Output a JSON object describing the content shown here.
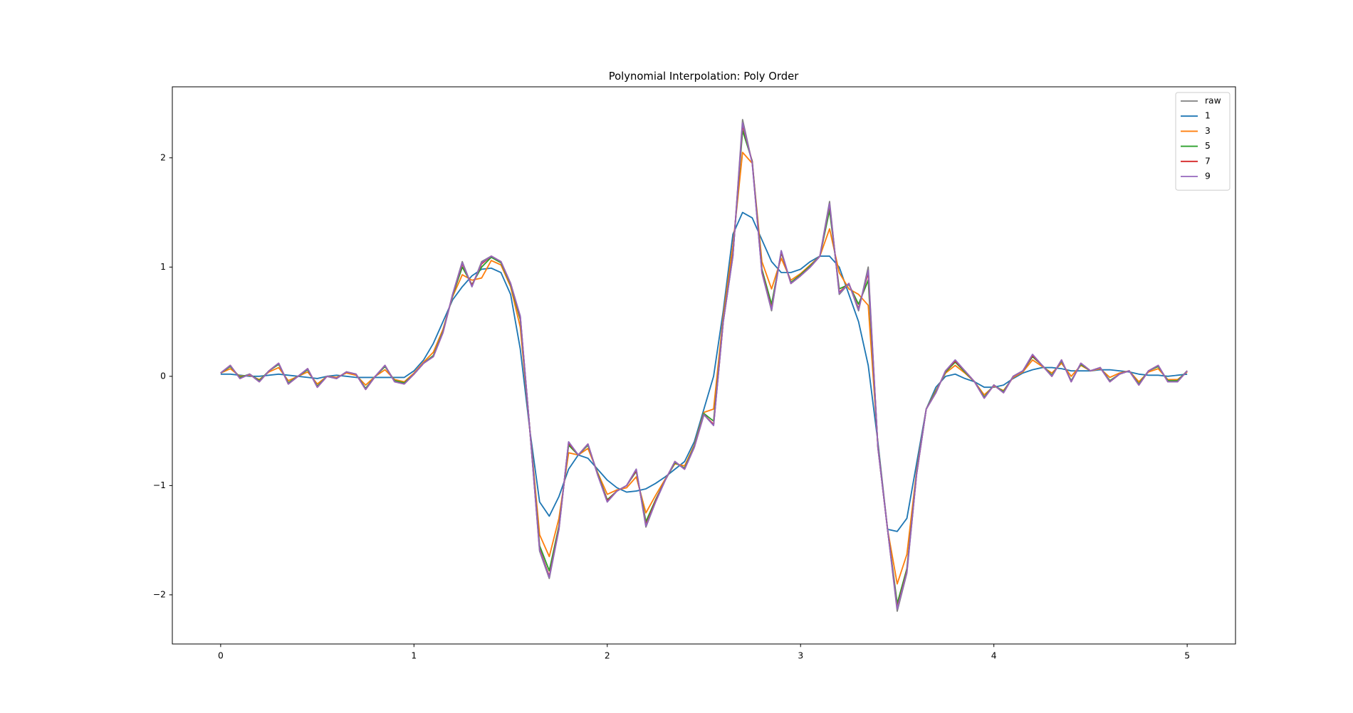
{
  "chart_data": {
    "type": "line",
    "title": "Polynomial Interpolation: Poly Order",
    "x": [
      0,
      0.05,
      0.1,
      0.15,
      0.2,
      0.25,
      0.3,
      0.35,
      0.4,
      0.45,
      0.5,
      0.55,
      0.6,
      0.65,
      0.7,
      0.75,
      0.8,
      0.85,
      0.9,
      0.95,
      1,
      1.05,
      1.1,
      1.15,
      1.2,
      1.25,
      1.3,
      1.35,
      1.4,
      1.45,
      1.5,
      1.55,
      1.6,
      1.65,
      1.7,
      1.75,
      1.8,
      1.85,
      1.9,
      1.95,
      2,
      2.05,
      2.1,
      2.15,
      2.2,
      2.25,
      2.3,
      2.35,
      2.4,
      2.45,
      2.5,
      2.55,
      2.6,
      2.65,
      2.7,
      2.75,
      2.8,
      2.85,
      2.9,
      2.95,
      3,
      3.05,
      3.1,
      3.15,
      3.2,
      3.25,
      3.3,
      3.35,
      3.4,
      3.45,
      3.5,
      3.55,
      3.6,
      3.65,
      3.7,
      3.75,
      3.8,
      3.85,
      3.9,
      3.95,
      4,
      4.05,
      4.1,
      4.15,
      4.2,
      4.25,
      4.3,
      4.35,
      4.4,
      4.45,
      4.5,
      4.55,
      4.6,
      4.65,
      4.7,
      4.75,
      4.8,
      4.85,
      4.9,
      4.95,
      5
    ],
    "series": [
      {
        "name": "raw",
        "color": "#7f7f7f",
        "values": [
          0.03,
          0.1,
          -0.02,
          0.02,
          -0.05,
          0.05,
          0.12,
          -0.07,
          0.0,
          0.07,
          -0.1,
          0.0,
          -0.02,
          0.04,
          0.02,
          -0.12,
          0.0,
          0.1,
          -0.05,
          -0.07,
          0.02,
          0.12,
          0.18,
          0.4,
          0.75,
          1.05,
          0.82,
          1.05,
          1.1,
          1.05,
          0.85,
          0.55,
          -0.5,
          -1.6,
          -1.85,
          -1.4,
          -0.6,
          -0.72,
          -0.62,
          -0.9,
          -1.15,
          -1.05,
          -1.0,
          -0.85,
          -1.38,
          -1.15,
          -0.95,
          -0.78,
          -0.85,
          -0.65,
          -0.35,
          -0.45,
          0.5,
          1.1,
          2.35,
          1.95,
          0.95,
          0.6,
          1.15,
          0.85,
          0.92,
          1.0,
          1.1,
          1.6,
          0.75,
          0.85,
          0.6,
          1.0,
          -0.65,
          -1.4,
          -2.15,
          -1.8,
          -0.9,
          -0.3,
          -0.15,
          0.05,
          0.15,
          0.05,
          -0.05,
          -0.2,
          -0.08,
          -0.15,
          0.0,
          0.05,
          0.2,
          0.1,
          0.0,
          0.15,
          -0.05,
          0.12,
          0.05,
          0.08,
          -0.05,
          0.02,
          0.05,
          -0.08,
          0.05,
          0.1,
          -0.05,
          -0.05,
          0.05
        ]
      },
      {
        "name": "1",
        "color": "#1f77b4",
        "values": [
          0.02,
          0.02,
          0.01,
          0.0,
          0.0,
          0.01,
          0.02,
          0.01,
          0.0,
          -0.01,
          -0.02,
          0.0,
          0.01,
          0.0,
          -0.01,
          -0.01,
          -0.01,
          -0.01,
          -0.01,
          -0.01,
          0.05,
          0.15,
          0.3,
          0.5,
          0.7,
          0.82,
          0.92,
          0.98,
          0.99,
          0.95,
          0.75,
          0.25,
          -0.5,
          -1.15,
          -1.28,
          -1.1,
          -0.85,
          -0.72,
          -0.75,
          -0.85,
          -0.95,
          -1.02,
          -1.06,
          -1.05,
          -1.03,
          -0.98,
          -0.92,
          -0.85,
          -0.78,
          -0.6,
          -0.3,
          0.0,
          0.6,
          1.3,
          1.5,
          1.45,
          1.25,
          1.05,
          0.95,
          0.95,
          0.98,
          1.05,
          1.1,
          1.1,
          1.0,
          0.75,
          0.5,
          0.1,
          -0.6,
          -1.4,
          -1.42,
          -1.3,
          -0.8,
          -0.3,
          -0.1,
          0.0,
          0.02,
          -0.02,
          -0.05,
          -0.1,
          -0.1,
          -0.08,
          -0.02,
          0.03,
          0.06,
          0.08,
          0.08,
          0.07,
          0.05,
          0.05,
          0.05,
          0.06,
          0.06,
          0.05,
          0.04,
          0.02,
          0.01,
          0.01,
          0.0,
          0.01,
          0.02
        ]
      },
      {
        "name": "3",
        "color": "#ff7f0e",
        "values": [
          0.03,
          0.07,
          0.0,
          0.01,
          -0.03,
          0.04,
          0.08,
          -0.04,
          0.0,
          0.04,
          -0.07,
          0.0,
          -0.01,
          0.03,
          0.01,
          -0.08,
          0.0,
          0.06,
          -0.03,
          -0.05,
          0.03,
          0.13,
          0.22,
          0.43,
          0.73,
          0.93,
          0.88,
          0.9,
          1.06,
          1.02,
          0.82,
          0.45,
          -0.5,
          -1.45,
          -1.65,
          -1.3,
          -0.7,
          -0.72,
          -0.66,
          -0.88,
          -1.08,
          -1.04,
          -1.02,
          -0.92,
          -1.25,
          -1.09,
          -0.94,
          -0.8,
          -0.82,
          -0.63,
          -0.33,
          -0.3,
          0.55,
          1.2,
          2.05,
          1.95,
          1.05,
          0.8,
          1.08,
          0.88,
          0.94,
          1.02,
          1.1,
          1.35,
          0.95,
          0.8,
          0.75,
          0.65,
          -0.63,
          -1.4,
          -1.9,
          -1.63,
          -0.87,
          -0.3,
          -0.13,
          0.03,
          0.1,
          0.03,
          -0.05,
          -0.17,
          -0.09,
          -0.13,
          -0.01,
          0.04,
          0.15,
          0.09,
          0.03,
          0.12,
          0.0,
          0.1,
          0.05,
          0.07,
          -0.01,
          0.03,
          0.05,
          -0.05,
          0.04,
          0.07,
          -0.03,
          -0.03,
          0.04
        ]
      },
      {
        "name": "5",
        "color": "#2ca02c",
        "values": [
          0.03,
          0.09,
          -0.01,
          0.02,
          -0.04,
          0.05,
          0.11,
          -0.06,
          0.0,
          0.06,
          -0.09,
          0.0,
          -0.02,
          0.04,
          0.02,
          -0.11,
          0.0,
          0.09,
          -0.04,
          -0.06,
          0.02,
          0.12,
          0.19,
          0.41,
          0.74,
          1.0,
          0.84,
          1.0,
          1.09,
          1.04,
          0.84,
          0.52,
          -0.5,
          -1.55,
          -1.78,
          -1.37,
          -0.63,
          -0.72,
          -0.63,
          -0.89,
          -1.13,
          -1.05,
          -1.0,
          -0.87,
          -1.33,
          -1.13,
          -0.95,
          -0.79,
          -0.84,
          -0.64,
          -0.34,
          -0.41,
          0.51,
          1.12,
          2.25,
          1.97,
          0.98,
          0.66,
          1.13,
          0.86,
          0.93,
          1.01,
          1.1,
          1.52,
          0.8,
          0.84,
          0.66,
          0.88,
          -0.64,
          -1.4,
          -2.08,
          -1.76,
          -0.89,
          -0.3,
          -0.14,
          0.04,
          0.13,
          0.04,
          -0.05,
          -0.19,
          -0.08,
          -0.14,
          0.0,
          0.05,
          0.18,
          0.1,
          0.01,
          0.14,
          -0.04,
          0.11,
          0.05,
          0.08,
          -0.04,
          0.02,
          0.05,
          -0.07,
          0.05,
          0.09,
          -0.04,
          -0.04,
          0.05
        ]
      },
      {
        "name": "7",
        "color": "#d62728",
        "values": [
          0.03,
          0.1,
          -0.02,
          0.02,
          -0.05,
          0.05,
          0.12,
          -0.07,
          0.0,
          0.07,
          -0.1,
          0.0,
          -0.02,
          0.04,
          0.02,
          -0.12,
          0.0,
          0.1,
          -0.05,
          -0.07,
          0.02,
          0.12,
          0.18,
          0.4,
          0.75,
          1.03,
          0.83,
          1.03,
          1.1,
          1.05,
          0.85,
          0.54,
          -0.5,
          -1.58,
          -1.83,
          -1.39,
          -0.61,
          -0.72,
          -0.62,
          -0.9,
          -1.14,
          -1.05,
          -1.0,
          -0.86,
          -1.36,
          -1.14,
          -0.95,
          -0.78,
          -0.85,
          -0.65,
          -0.35,
          -0.44,
          0.5,
          1.11,
          2.3,
          1.96,
          0.96,
          0.62,
          1.14,
          0.85,
          0.92,
          1.0,
          1.1,
          1.57,
          0.77,
          0.85,
          0.62,
          0.95,
          -0.65,
          -1.4,
          -2.12,
          -1.78,
          -0.9,
          -0.3,
          -0.15,
          0.05,
          0.14,
          0.05,
          -0.05,
          -0.2,
          -0.08,
          -0.15,
          0.0,
          0.05,
          0.19,
          0.1,
          0.0,
          0.15,
          -0.05,
          0.12,
          0.05,
          0.08,
          -0.05,
          0.02,
          0.05,
          -0.08,
          0.05,
          0.1,
          -0.05,
          -0.05,
          0.05
        ]
      },
      {
        "name": "9",
        "color": "#9467bd",
        "values": [
          0.03,
          0.1,
          -0.02,
          0.02,
          -0.05,
          0.05,
          0.12,
          -0.07,
          0.0,
          0.07,
          -0.1,
          0.0,
          -0.02,
          0.04,
          0.02,
          -0.12,
          0.0,
          0.1,
          -0.05,
          -0.07,
          0.02,
          0.12,
          0.18,
          0.4,
          0.75,
          1.04,
          0.82,
          1.04,
          1.1,
          1.05,
          0.85,
          0.55,
          -0.5,
          -1.59,
          -1.84,
          -1.4,
          -0.6,
          -0.72,
          -0.62,
          -0.9,
          -1.15,
          -1.05,
          -1.0,
          -0.85,
          -1.37,
          -1.15,
          -0.95,
          -0.78,
          -0.85,
          -0.65,
          -0.35,
          -0.45,
          0.5,
          1.1,
          2.32,
          1.95,
          0.95,
          0.61,
          1.15,
          0.85,
          0.92,
          1.0,
          1.1,
          1.58,
          0.76,
          0.85,
          0.61,
          0.97,
          -0.65,
          -1.4,
          -2.13,
          -1.79,
          -0.9,
          -0.3,
          -0.15,
          0.05,
          0.15,
          0.05,
          -0.05,
          -0.2,
          -0.08,
          -0.15,
          0.0,
          0.05,
          0.2,
          0.1,
          0.0,
          0.15,
          -0.05,
          0.12,
          0.05,
          0.08,
          -0.05,
          0.02,
          0.05,
          -0.08,
          0.05,
          0.1,
          -0.05,
          -0.05,
          0.05
        ]
      }
    ],
    "xlim": [
      -0.25,
      5.25
    ],
    "xticks": [
      0,
      1,
      2,
      3,
      4,
      5
    ],
    "ylim": [
      -2.45,
      2.65
    ],
    "yticks": [
      {
        "value": -2,
        "label": "−2"
      },
      {
        "value": -1,
        "label": "−1"
      },
      0,
      1,
      2
    ],
    "grid": false,
    "legend": "upper right"
  }
}
